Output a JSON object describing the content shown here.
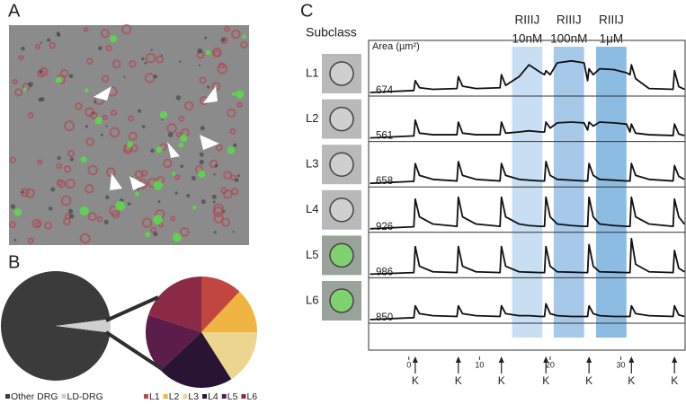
{
  "panel_labels": [
    "A",
    "B",
    "C"
  ],
  "chart_data": [
    {
      "type": "pie",
      "categories": [
        "Other DRG",
        "LD-DRG"
      ],
      "values": [
        96,
        4
      ],
      "colors": [
        "#3b3b3b",
        "#cfcfcf"
      ]
    },
    {
      "type": "pie",
      "categories": [
        "L1",
        "L2",
        "L3",
        "L4",
        "L5",
        "L6"
      ],
      "values": [
        12,
        13,
        16,
        22,
        17,
        20
      ],
      "colors": [
        "#c0463f",
        "#efb442",
        "#ecd68f",
        "#2a1434",
        "#5b1d4a",
        "#8b2a45"
      ]
    },
    {
      "type": "line",
      "title": "Subclass",
      "y_label": "Area (µm²)",
      "x": [
        -5.5,
        0.7,
        0.9,
        1.5,
        3.4,
        6.8,
        7.0,
        7.6,
        9.5,
        12.9,
        13.1,
        13.7,
        15.6,
        17,
        18.7,
        19.2,
        19.4,
        20.0,
        21,
        23,
        24.8,
        25.3,
        25.5,
        26.1,
        27,
        29,
        30.8,
        31.3,
        31.5,
        32.1,
        34,
        37.4,
        37.6,
        38.2,
        39
      ],
      "xlim": [
        -5.7,
        39.1
      ],
      "xticks": [
        0,
        10,
        20,
        30
      ],
      "ylim": [
        0,
        1
      ],
      "series": [
        {
          "name": "L1",
          "area": 674,
          "color": "#111111",
          "values": [
            0,
            0.05,
            0.3,
            0.12,
            0.08,
            0.1,
            0.4,
            0.16,
            0.1,
            0.12,
            0.45,
            0.18,
            0.4,
            0.7,
            0.5,
            0.45,
            0.55,
            0.45,
            0.75,
            0.8,
            0.75,
            0.3,
            0.6,
            0.45,
            0.6,
            0.58,
            0.5,
            0.45,
            0.7,
            0.35,
            0.1,
            0.08,
            0.55,
            0.15,
            0.08
          ]
        },
        {
          "name": "L2",
          "area": 561,
          "color": "#111111",
          "values": [
            0,
            0.05,
            0.45,
            0.12,
            0.08,
            0.08,
            0.4,
            0.12,
            0.08,
            0.08,
            0.4,
            0.12,
            0.15,
            0.18,
            0.15,
            0.15,
            0.4,
            0.25,
            0.38,
            0.4,
            0.38,
            0.2,
            0.4,
            0.3,
            0.4,
            0.38,
            0.35,
            0.15,
            0.35,
            0.12,
            0.08,
            0.06,
            0.35,
            0.1,
            0.06
          ]
        },
        {
          "name": "L3",
          "area": 658,
          "color": "#111111",
          "values": [
            0,
            0.05,
            0.5,
            0.2,
            0.1,
            0.06,
            0.55,
            0.2,
            0.1,
            0.06,
            0.5,
            0.2,
            0.1,
            0.08,
            0.06,
            0.06,
            0.55,
            0.2,
            0.1,
            0.08,
            0.06,
            0.06,
            0.5,
            0.2,
            0.1,
            0.08,
            0.06,
            0.06,
            0.5,
            0.2,
            0.1,
            0.06,
            0.45,
            0.18,
            0.1
          ]
        },
        {
          "name": "L4",
          "area": 926,
          "color": "#111111",
          "values": [
            0,
            0.05,
            0.75,
            0.3,
            0.12,
            0.06,
            0.8,
            0.3,
            0.12,
            0.06,
            0.8,
            0.3,
            0.12,
            0.08,
            0.06,
            0.06,
            0.8,
            0.3,
            0.12,
            0.08,
            0.06,
            0.06,
            0.8,
            0.3,
            0.12,
            0.08,
            0.06,
            0.06,
            0.8,
            0.3,
            0.12,
            0.06,
            0.75,
            0.3,
            0.12
          ]
        },
        {
          "name": "L5",
          "area": 986,
          "color": "#111111",
          "values": [
            0,
            0.04,
            0.7,
            0.2,
            0.06,
            0.04,
            0.7,
            0.2,
            0.06,
            0.04,
            0.7,
            0.2,
            0.06,
            0.05,
            0.04,
            0.04,
            0.7,
            0.2,
            0.06,
            0.05,
            0.04,
            0.04,
            0.75,
            0.2,
            0.06,
            0.05,
            0.04,
            0.04,
            0.9,
            0.25,
            0.06,
            0.04,
            0.6,
            0.15,
            0.06
          ]
        },
        {
          "name": "L6",
          "area": 850,
          "color": "#111111",
          "values": [
            0,
            0.05,
            0.35,
            0.15,
            0.1,
            0.08,
            0.35,
            0.15,
            0.1,
            0.08,
            0.35,
            0.15,
            0.1,
            0.1,
            0.08,
            0.08,
            0.4,
            0.15,
            0.1,
            0.08,
            0.08,
            0.08,
            0.35,
            0.15,
            0.1,
            0.08,
            0.08,
            0.08,
            0.35,
            0.15,
            0.1,
            0.08,
            0.35,
            0.12,
            0.08
          ]
        }
      ],
      "stimuli": {
        "label": "K",
        "x": [
          0.9,
          7.0,
          13.1,
          19.4,
          25.5,
          31.5,
          37.6
        ]
      },
      "treatments": [
        {
          "label": [
            "RIIIJ",
            "10nM"
          ],
          "x": [
            14.6,
            18.9
          ],
          "color": "#c8def2"
        },
        {
          "label": [
            "RIIIJ",
            "100nM"
          ],
          "x": [
            20.5,
            24.8
          ],
          "color": "#a6c9ea"
        },
        {
          "label": [
            "RIIIJ",
            "1μM"
          ],
          "x": [
            26.5,
            30.8
          ],
          "color": "#8dbce3"
        }
      ]
    }
  ]
}
